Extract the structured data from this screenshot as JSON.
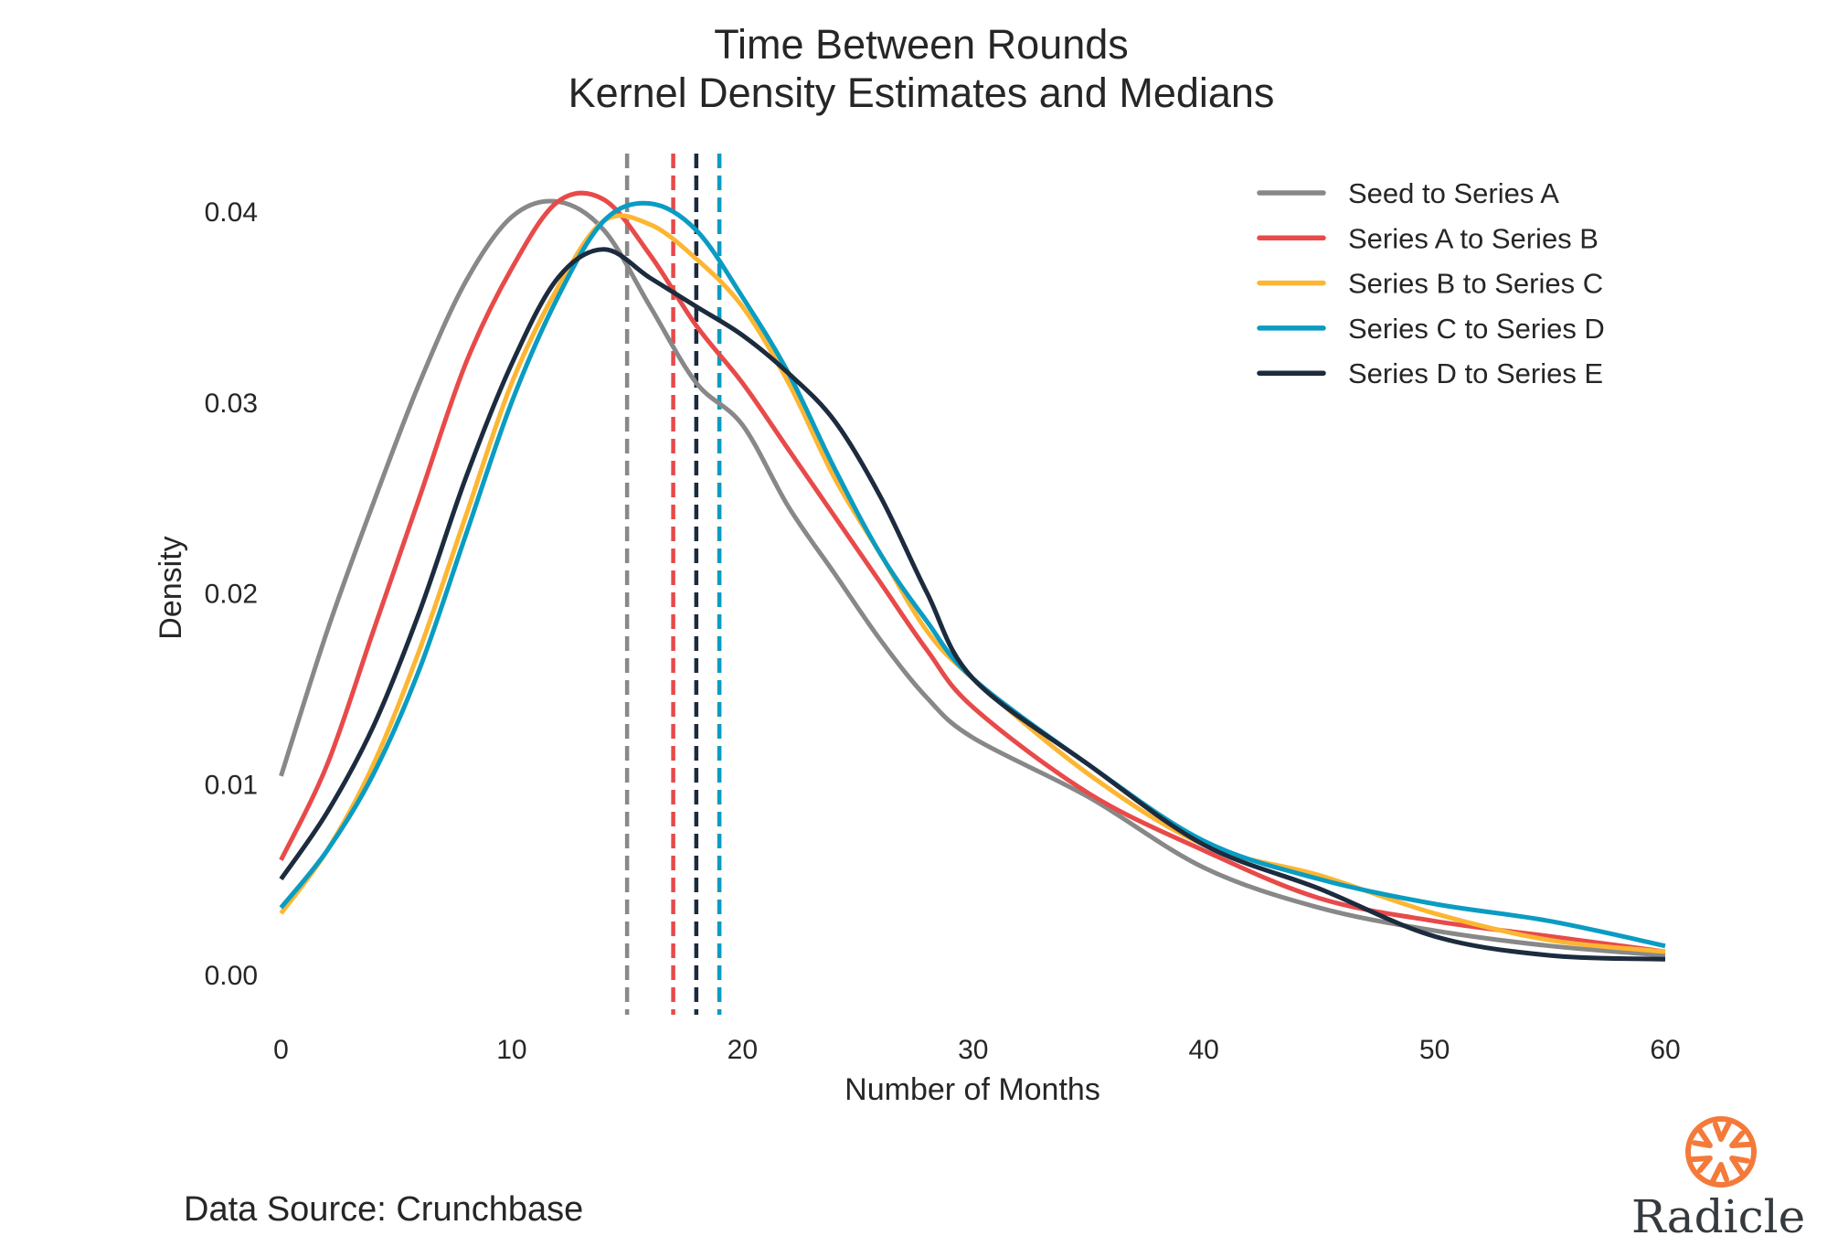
{
  "chart_data": {
    "type": "line",
    "title": "Time Between Rounds",
    "subtitle": "Kernel Density Estimates and Medians",
    "xlabel": "Number of Months",
    "ylabel": "Density",
    "xlim": [
      0,
      60
    ],
    "ylim": [
      -0.0022,
      0.0432
    ],
    "x_ticks": [
      "0",
      "10",
      "20",
      "30",
      "40",
      "50",
      "60"
    ],
    "y_ticks": [
      "0.00",
      "0.01",
      "0.02",
      "0.03",
      "0.04"
    ],
    "grid": false,
    "legend_position": "top-right",
    "x": [
      0,
      2,
      4,
      6,
      8,
      10,
      12,
      14,
      16,
      18,
      20,
      22,
      24,
      26,
      28,
      30,
      35,
      40,
      45,
      50,
      55,
      60
    ],
    "series": [
      {
        "name": "Seed to Series A",
        "color": "#888888",
        "median": 15,
        "values": [
          0.0104,
          0.018,
          0.0247,
          0.031,
          0.0363,
          0.0397,
          0.0405,
          0.039,
          0.035,
          0.031,
          0.0288,
          0.0245,
          0.021,
          0.0175,
          0.0145,
          0.0124,
          0.0093,
          0.0056,
          0.0035,
          0.0023,
          0.0015,
          0.001
        ]
      },
      {
        "name": "Series A to Series B",
        "color": "#e84a4a",
        "median": 17,
        "values": [
          0.006,
          0.011,
          0.018,
          0.025,
          0.032,
          0.037,
          0.0405,
          0.0406,
          0.0377,
          0.034,
          0.031,
          0.0275,
          0.024,
          0.0205,
          0.017,
          0.014,
          0.0095,
          0.0065,
          0.004,
          0.0028,
          0.002,
          0.0012
        ]
      },
      {
        "name": "Series B to Series C",
        "color": "#fdb632",
        "median": 19,
        "values": [
          0.0032,
          0.0065,
          0.011,
          0.017,
          0.024,
          0.031,
          0.036,
          0.0395,
          0.0393,
          0.0375,
          0.035,
          0.031,
          0.026,
          0.022,
          0.018,
          0.0155,
          0.0105,
          0.0068,
          0.0052,
          0.0032,
          0.0018,
          0.0012
        ]
      },
      {
        "name": "Series C to Series D",
        "color": "#0a9cc2",
        "median": 19,
        "values": [
          0.0035,
          0.0065,
          0.0105,
          0.016,
          0.023,
          0.03,
          0.0355,
          0.0395,
          0.0404,
          0.039,
          0.0355,
          0.0315,
          0.0265,
          0.022,
          0.0185,
          0.0155,
          0.011,
          0.007,
          0.005,
          0.0037,
          0.0028,
          0.0015
        ]
      },
      {
        "name": "Series D to Series E",
        "color": "#1c2b3e",
        "median": 18,
        "values": [
          0.005,
          0.0085,
          0.013,
          0.019,
          0.026,
          0.032,
          0.0365,
          0.038,
          0.0365,
          0.035,
          0.0335,
          0.0315,
          0.029,
          0.025,
          0.02,
          0.0155,
          0.011,
          0.0068,
          0.0045,
          0.002,
          0.001,
          0.0008
        ]
      }
    ]
  },
  "footer": {
    "source": "Data Source: Crunchbase"
  },
  "logo": {
    "text": "Radicle",
    "color": "#f47a3a"
  }
}
